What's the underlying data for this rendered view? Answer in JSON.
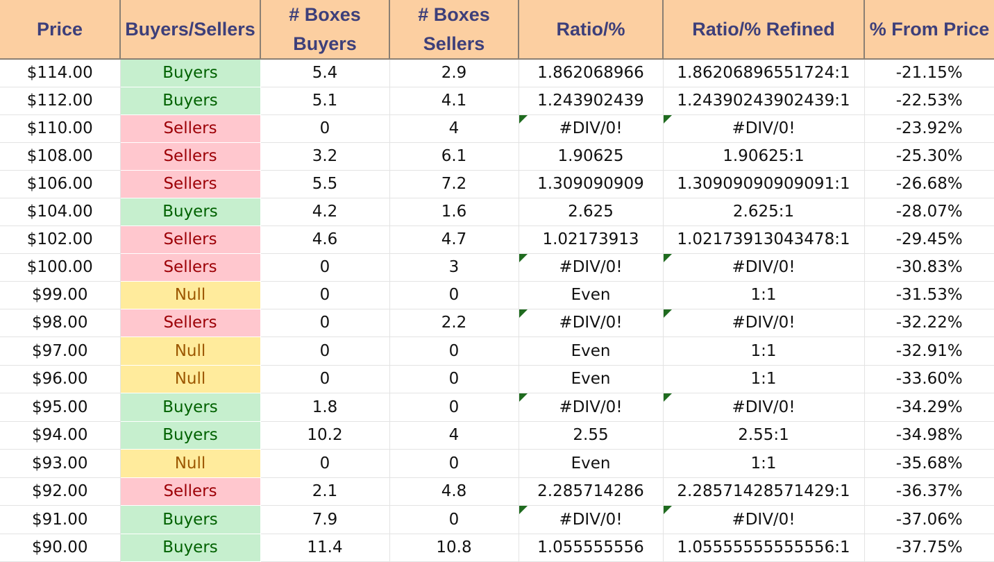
{
  "headers": [
    "Price",
    "Buyers/Sellers",
    "# Boxes Buyers",
    "# Boxes Sellers",
    "Ratio/%",
    "Ratio/% Refined",
    "% From Price"
  ],
  "colors": {
    "header_bg": "#fccfa1",
    "header_text": "#3d3f7a",
    "buyers_bg": "#c6efce",
    "buyers_text": "#006100",
    "sellers_bg": "#ffc7ce",
    "sellers_text": "#9c0006",
    "null_bg": "#ffeb9c",
    "null_text": "#9c5700",
    "error_flag": "#1f6b1f"
  },
  "rows": [
    {
      "price": "$114.00",
      "side": "Buyers",
      "buyers": "5.4",
      "sellers": "2.9",
      "ratio": "1.862068966",
      "refined": "1.86206896551724:1",
      "from_price": "-21.15%"
    },
    {
      "price": "$112.00",
      "side": "Buyers",
      "buyers": "5.1",
      "sellers": "4.1",
      "ratio": "1.243902439",
      "refined": "1.24390243902439:1",
      "from_price": "-22.53%"
    },
    {
      "price": "$110.00",
      "side": "Sellers",
      "buyers": "0",
      "sellers": "4",
      "ratio": "#DIV/0!",
      "refined": "#DIV/0!",
      "from_price": "-23.92%"
    },
    {
      "price": "$108.00",
      "side": "Sellers",
      "buyers": "3.2",
      "sellers": "6.1",
      "ratio": "1.90625",
      "refined": "1.90625:1",
      "from_price": "-25.30%"
    },
    {
      "price": "$106.00",
      "side": "Sellers",
      "buyers": "5.5",
      "sellers": "7.2",
      "ratio": "1.309090909",
      "refined": "1.30909090909091:1",
      "from_price": "-26.68%"
    },
    {
      "price": "$104.00",
      "side": "Buyers",
      "buyers": "4.2",
      "sellers": "1.6",
      "ratio": "2.625",
      "refined": "2.625:1",
      "from_price": "-28.07%"
    },
    {
      "price": "$102.00",
      "side": "Sellers",
      "buyers": "4.6",
      "sellers": "4.7",
      "ratio": "1.02173913",
      "refined": "1.02173913043478:1",
      "from_price": "-29.45%"
    },
    {
      "price": "$100.00",
      "side": "Sellers",
      "buyers": "0",
      "sellers": "3",
      "ratio": "#DIV/0!",
      "refined": "#DIV/0!",
      "from_price": "-30.83%"
    },
    {
      "price": "$99.00",
      "side": "Null",
      "buyers": "0",
      "sellers": "0",
      "ratio": "Even",
      "refined": "1:1",
      "from_price": "-31.53%"
    },
    {
      "price": "$98.00",
      "side": "Sellers",
      "buyers": "0",
      "sellers": "2.2",
      "ratio": "#DIV/0!",
      "refined": "#DIV/0!",
      "from_price": "-32.22%"
    },
    {
      "price": "$97.00",
      "side": "Null",
      "buyers": "0",
      "sellers": "0",
      "ratio": "Even",
      "refined": "1:1",
      "from_price": "-32.91%"
    },
    {
      "price": "$96.00",
      "side": "Null",
      "buyers": "0",
      "sellers": "0",
      "ratio": "Even",
      "refined": "1:1",
      "from_price": "-33.60%"
    },
    {
      "price": "$95.00",
      "side": "Buyers",
      "buyers": "1.8",
      "sellers": "0",
      "ratio": "#DIV/0!",
      "refined": "#DIV/0!",
      "from_price": "-34.29%"
    },
    {
      "price": "$94.00",
      "side": "Buyers",
      "buyers": "10.2",
      "sellers": "4",
      "ratio": "2.55",
      "refined": "2.55:1",
      "from_price": "-34.98%"
    },
    {
      "price": "$93.00",
      "side": "Null",
      "buyers": "0",
      "sellers": "0",
      "ratio": "Even",
      "refined": "1:1",
      "from_price": "-35.68%"
    },
    {
      "price": "$92.00",
      "side": "Sellers",
      "buyers": "2.1",
      "sellers": "4.8",
      "ratio": "2.285714286",
      "refined": "2.28571428571429:1",
      "from_price": "-36.37%"
    },
    {
      "price": "$91.00",
      "side": "Buyers",
      "buyers": "7.9",
      "sellers": "0",
      "ratio": "#DIV/0!",
      "refined": "#DIV/0!",
      "from_price": "-37.06%"
    },
    {
      "price": "$90.00",
      "side": "Buyers",
      "buyers": "11.4",
      "sellers": "10.8",
      "ratio": "1.055555556",
      "refined": "1.05555555555556:1",
      "from_price": "-37.75%"
    }
  ]
}
